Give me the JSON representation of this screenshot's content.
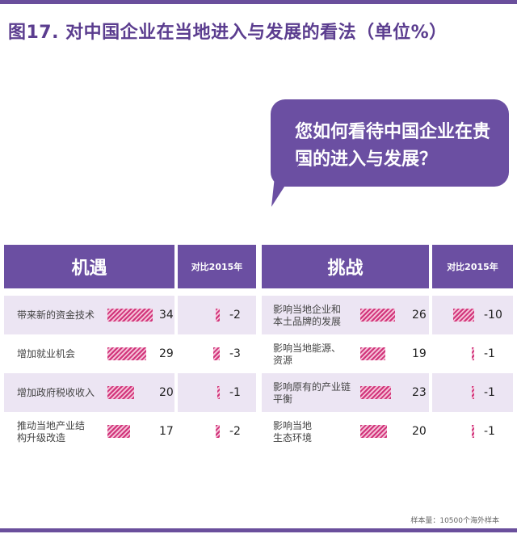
{
  "title": "图17. 对中国企业在当地进入与发展的看法（单位%）",
  "question": "您如何看待中国企业在贵国的进入与发展？",
  "chart_data": [
    {
      "type": "bar",
      "header": "机遇",
      "compare_header": "对比2015年",
      "categories": [
        "带来新的资金技术",
        "增加就业机会",
        "增加政府税收收入",
        "推动当地产业结\n构升级改造"
      ],
      "values": [
        34,
        29,
        20,
        17
      ],
      "change_vs_2015": [
        -2,
        -3,
        -1,
        -2
      ]
    },
    {
      "type": "bar",
      "header": "挑战",
      "compare_header": "对比2015年",
      "categories": [
        "影响当地企业和\n本土品牌的发展",
        "影响当地能源、\n资源",
        "影响原有的产业链\n平衡",
        "影响当地\n生态环境"
      ],
      "values": [
        26,
        19,
        23,
        20
      ],
      "change_vs_2015": [
        -10,
        -1,
        -1,
        -1
      ]
    }
  ],
  "footnote": "样本量：10500个海外样本",
  "colors": {
    "accent": "#6b4fa2",
    "bar": "#d1337a",
    "row_shade": "#ece5f3"
  }
}
